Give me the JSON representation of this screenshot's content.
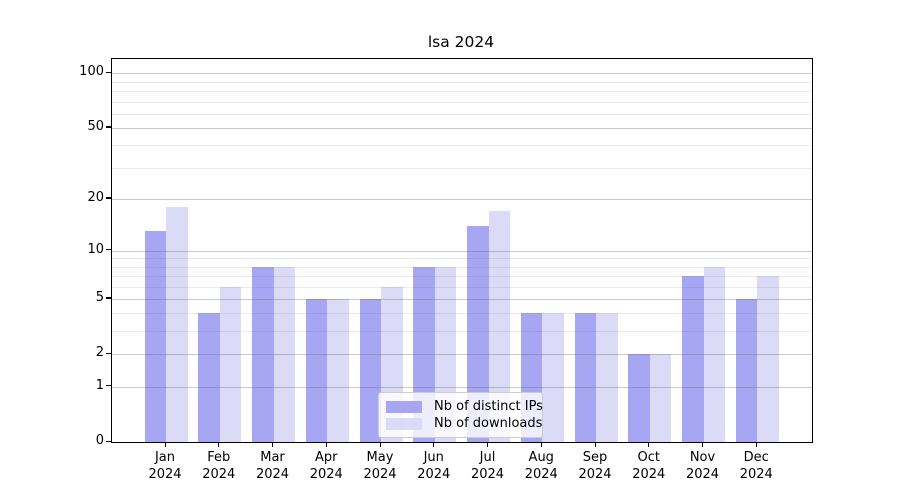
{
  "title": "lsa 2024",
  "chart_data": {
    "type": "bar",
    "title": "lsa 2024",
    "categories": [
      "Jan",
      "Feb",
      "Mar",
      "Apr",
      "May",
      "Jun",
      "Jul",
      "Aug",
      "Sep",
      "Oct",
      "Nov",
      "Dec"
    ],
    "category_year": "2024",
    "series": [
      {
        "name": "Nb of distinct IPs",
        "color": "#a6a6f2",
        "values": [
          13,
          4,
          8,
          5,
          5,
          8,
          14,
          4,
          4,
          2,
          7,
          5
        ]
      },
      {
        "name": "Nb of downloads",
        "color": "#dbdbf8",
        "values": [
          18,
          6,
          8,
          5,
          6,
          8,
          17,
          4,
          4,
          2,
          8,
          7
        ]
      }
    ],
    "xlabel": "",
    "ylabel": "",
    "yscale": "log1p",
    "ylim": [
      0,
      120
    ],
    "yticks": [
      0,
      1,
      2,
      5,
      10,
      20,
      50,
      100
    ],
    "minor_gridlines": [
      3,
      4,
      6,
      7,
      8,
      9,
      30,
      40,
      60,
      70,
      80,
      90
    ],
    "grid": "on",
    "legend_position": "lower center"
  },
  "legend": {
    "items": [
      "Nb of distinct IPs",
      "Nb of downloads"
    ]
  },
  "colors": {
    "background": "#ffffff",
    "axis": "#000000",
    "bar_distinct_ips": "#a6a6f2",
    "bar_downloads": "#dbdbf8",
    "grid_major": "rgba(100,100,100,0.35)",
    "grid_minor": "rgba(100,100,100,0.13)",
    "legend_border": "#cccccc",
    "text": "#000000"
  }
}
